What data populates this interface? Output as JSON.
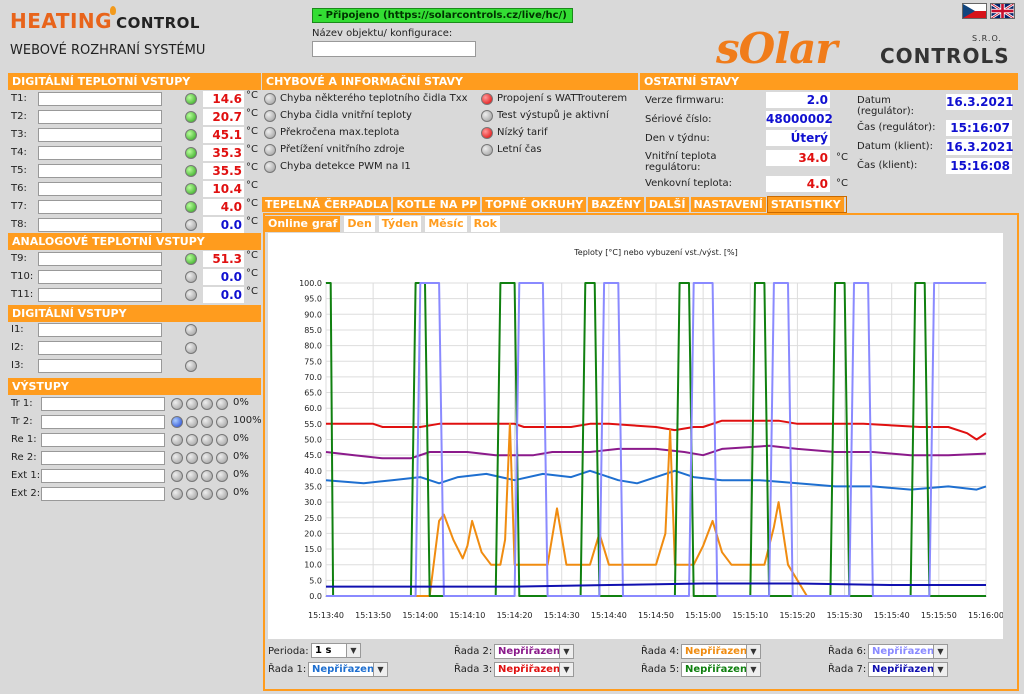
{
  "header": {
    "logo_word1": "HEATING",
    "logo_word2": "CONTROL",
    "subtitle": "WEBOVÉ ROZHRANÍ SYSTÉMU",
    "connection": "- Připojeno (https://solarcontrols.cz/live/hc/)",
    "object_label": "Název objektu/ konfigurace:",
    "object_value": "",
    "brand_word1": "sOlar",
    "brand_word2": "CONTROLS",
    "brand_suffix": "S.R.O."
  },
  "digital_temp": {
    "title": "DIGITÁLNÍ TEPLOTNÍ VSTUPY",
    "unit": "°C",
    "rows": [
      {
        "label": "T1:",
        "value": "14.6",
        "color": "red",
        "led": "green"
      },
      {
        "label": "T2:",
        "value": "20.7",
        "color": "red",
        "led": "green"
      },
      {
        "label": "T3:",
        "value": "45.1",
        "color": "red",
        "led": "green"
      },
      {
        "label": "T4:",
        "value": "35.3",
        "color": "red",
        "led": "green"
      },
      {
        "label": "T5:",
        "value": "35.5",
        "color": "red",
        "led": "green"
      },
      {
        "label": "T6:",
        "value": "10.4",
        "color": "red",
        "led": "green"
      },
      {
        "label": "T7:",
        "value": "4.0",
        "color": "red",
        "led": "green"
      },
      {
        "label": "T8:",
        "value": "0.0",
        "color": "blue",
        "led": "gray"
      }
    ]
  },
  "analog_temp": {
    "title": "ANALOGOVÉ TEPLOTNÍ VSTUPY",
    "unit": "°C",
    "rows": [
      {
        "label": "T9:",
        "value": "51.3",
        "color": "red",
        "led": "green"
      },
      {
        "label": "T10:",
        "value": "0.0",
        "color": "blue",
        "led": "gray"
      },
      {
        "label": "T11:",
        "value": "0.0",
        "color": "blue",
        "led": "gray"
      }
    ]
  },
  "digital_inputs": {
    "title": "DIGITÁLNÍ VSTUPY",
    "rows": [
      {
        "label": "I1:"
      },
      {
        "label": "I2:"
      },
      {
        "label": "I3:"
      }
    ]
  },
  "outputs": {
    "title": "VÝSTUPY",
    "rows": [
      {
        "label": "Tr 1:",
        "pct": "0%",
        "first": "gray"
      },
      {
        "label": "Tr 2:",
        "pct": "100%",
        "first": "blue"
      },
      {
        "label": "Re 1:",
        "pct": "0%",
        "first": "gray"
      },
      {
        "label": "Re 2:",
        "pct": "0%",
        "first": "gray"
      },
      {
        "label": "Ext 1:",
        "pct": "0%",
        "first": "gray"
      },
      {
        "label": "Ext 2:",
        "pct": "0%",
        "first": "gray"
      }
    ]
  },
  "errors": {
    "title": "CHYBOVÉ A INFORMAČNÍ STAVY",
    "left": [
      {
        "label": "Chyba některého teplotního čidla Txx",
        "led": "gray"
      },
      {
        "label": "Chyba čidla vnitřní teploty",
        "led": "gray"
      },
      {
        "label": "Překročena max.teplota",
        "led": "gray"
      },
      {
        "label": "Přetížení vnitřního zdroje",
        "led": "gray"
      },
      {
        "label": "Chyba detekce PWM na I1",
        "led": "gray"
      }
    ],
    "right": [
      {
        "label": "Propojení s WATTrouterem",
        "led": "red"
      },
      {
        "label": "Test výstupů je aktivní",
        "led": "gray"
      },
      {
        "label": "Nízký tarif",
        "led": "red"
      },
      {
        "label": "Letní čas",
        "led": "gray"
      }
    ]
  },
  "other": {
    "title": "OSTATNÍ STAVY",
    "firmware_label": "Verze firmwaru:",
    "firmware": "2.0",
    "serial_label": "Sériové číslo:",
    "serial": "48000002",
    "day_label": "Den v týdnu:",
    "day": "Úterý",
    "inner_label": "Vnitřní teplota regulátoru:",
    "inner": "34.0",
    "outer_label": "Venkovní teplota:",
    "outer": "4.0",
    "unit": "°C",
    "date_reg_label": "Datum (regulátor):",
    "date_reg": "16.3.2021",
    "time_reg_label": "Čas (regulátor):",
    "time_reg": "15:16:07",
    "date_cli_label": "Datum (klient):",
    "date_cli": "16.3.2021",
    "time_cli_label": "Čas (klient):",
    "time_cli": "15:16:08"
  },
  "tabs": [
    "TEPELNÁ ČERPADLA",
    "KOTLE NA PP",
    "TOPNÉ OKRUHY",
    "BAZÉNY",
    "DALŠÍ",
    "NASTAVENÍ",
    "STATISTIKY"
  ],
  "subtabs": [
    "Online graf",
    "Den",
    "Týden",
    "Měsíc",
    "Rok"
  ],
  "controls": {
    "period_label": "Perioda:",
    "period": "1 s",
    "series_sel": [
      {
        "label": "Řada 1:",
        "value": "Nepřiřazeno",
        "color": "#1e6fd0"
      },
      {
        "label": "Řada 2:",
        "value": "Nepřiřazeno",
        "color": "#8b1a8b"
      },
      {
        "label": "Řada 3:",
        "value": "Nepřiřazeno",
        "color": "#e01010"
      },
      {
        "label": "Řada 4:",
        "value": "Nepřiřazeno",
        "color": "#f08c10"
      },
      {
        "label": "Řada 5:",
        "value": "Nepřiřazeno",
        "color": "#108010"
      },
      {
        "label": "Řada 6:",
        "value": "Nepřiřazeno",
        "color": "#8a8aff"
      },
      {
        "label": "Řada 7:",
        "value": "Nepřiřazeno",
        "color": "#1010b0"
      }
    ]
  },
  "chart_data": {
    "type": "line",
    "title": "Teploty [°C] nebo vybuzení vst./výst. [%]",
    "ylim": [
      0,
      100
    ],
    "yticks": [
      "0.0",
      "5.0",
      "10.0",
      "15.0",
      "20.0",
      "25.0",
      "30.0",
      "35.0",
      "40.0",
      "45.0",
      "50.0",
      "55.0",
      "60.0",
      "65.0",
      "70.0",
      "75.0",
      "80.0",
      "85.0",
      "90.0",
      "95.0",
      "100.0"
    ],
    "xticks": [
      "15:13:40",
      "15:13:50",
      "15:14:00",
      "15:14:10",
      "15:14:20",
      "15:14:30",
      "15:14:40",
      "15:14:50",
      "15:15:00",
      "15:15:10",
      "15:15:20",
      "15:15:30",
      "15:15:40",
      "15:15:50",
      "15:16:00"
    ],
    "x_range_s": [
      0,
      140
    ],
    "series": [
      {
        "color": "#e01010",
        "values": [
          [
            0,
            55
          ],
          [
            10,
            55
          ],
          [
            12,
            54
          ],
          [
            20,
            54
          ],
          [
            24,
            55
          ],
          [
            40,
            55
          ],
          [
            42,
            54
          ],
          [
            52,
            54
          ],
          [
            56,
            55
          ],
          [
            60,
            55
          ],
          [
            70,
            54
          ],
          [
            74,
            53
          ],
          [
            78,
            54
          ],
          [
            80,
            54
          ],
          [
            84,
            56
          ],
          [
            96,
            56
          ],
          [
            100,
            55
          ],
          [
            114,
            55
          ],
          [
            126,
            54
          ],
          [
            132,
            54
          ],
          [
            136,
            52
          ],
          [
            138,
            50
          ],
          [
            140,
            52
          ]
        ]
      },
      {
        "color": "#8b1a8b",
        "values": [
          [
            0,
            46
          ],
          [
            6,
            45
          ],
          [
            12,
            44
          ],
          [
            18,
            44
          ],
          [
            22,
            46
          ],
          [
            30,
            46
          ],
          [
            36,
            45
          ],
          [
            44,
            45
          ],
          [
            48,
            46
          ],
          [
            56,
            46
          ],
          [
            62,
            47
          ],
          [
            70,
            47
          ],
          [
            76,
            46
          ],
          [
            80,
            45
          ],
          [
            84,
            47
          ],
          [
            94,
            48
          ],
          [
            100,
            47
          ],
          [
            108,
            46
          ],
          [
            116,
            46
          ],
          [
            124,
            45
          ],
          [
            132,
            45
          ],
          [
            140,
            45.5
          ]
        ]
      },
      {
        "color": "#1e6fd0",
        "values": [
          [
            0,
            37
          ],
          [
            8,
            36
          ],
          [
            14,
            37
          ],
          [
            20,
            38
          ],
          [
            24,
            36
          ],
          [
            28,
            38
          ],
          [
            34,
            39
          ],
          [
            40,
            37
          ],
          [
            46,
            39
          ],
          [
            52,
            38
          ],
          [
            56,
            40
          ],
          [
            62,
            37
          ],
          [
            66,
            36
          ],
          [
            72,
            39
          ],
          [
            74,
            40
          ],
          [
            78,
            38
          ],
          [
            84,
            37
          ],
          [
            92,
            37
          ],
          [
            100,
            36
          ],
          [
            108,
            35
          ],
          [
            116,
            35
          ],
          [
            124,
            34
          ],
          [
            132,
            35
          ],
          [
            138,
            34
          ],
          [
            140,
            35
          ]
        ]
      },
      {
        "color": "#f08c10",
        "values": [
          [
            0,
            0
          ],
          [
            22,
            0
          ],
          [
            24,
            24
          ],
          [
            25,
            26
          ],
          [
            27,
            18
          ],
          [
            29,
            12
          ],
          [
            30,
            16
          ],
          [
            31,
            24
          ],
          [
            33,
            14
          ],
          [
            35,
            10
          ],
          [
            37,
            10
          ],
          [
            38,
            18
          ],
          [
            39,
            55
          ],
          [
            40,
            10
          ],
          [
            47,
            10
          ],
          [
            49,
            28
          ],
          [
            51,
            10
          ],
          [
            56,
            10
          ],
          [
            58,
            20
          ],
          [
            60,
            10
          ],
          [
            70,
            10
          ],
          [
            72,
            20
          ],
          [
            73,
            53
          ],
          [
            74,
            10
          ],
          [
            78,
            10
          ],
          [
            80,
            16
          ],
          [
            82,
            24
          ],
          [
            84,
            14
          ],
          [
            86,
            10
          ],
          [
            93,
            10
          ],
          [
            95,
            22
          ],
          [
            96,
            30
          ],
          [
            98,
            10
          ],
          [
            102,
            0
          ],
          [
            140,
            0
          ]
        ]
      },
      {
        "color": "#108010",
        "values": [
          [
            0,
            100
          ],
          [
            1,
            100
          ],
          [
            1.5,
            0
          ],
          [
            18,
            0
          ],
          [
            19,
            100
          ],
          [
            21,
            100
          ],
          [
            22,
            0
          ],
          [
            36,
            0
          ],
          [
            37,
            100
          ],
          [
            40,
            100
          ],
          [
            41,
            0
          ],
          [
            54,
            0
          ],
          [
            55,
            100
          ],
          [
            57,
            100
          ],
          [
            58,
            0
          ],
          [
            74,
            0
          ],
          [
            75,
            100
          ],
          [
            77,
            100
          ],
          [
            78,
            0
          ],
          [
            90,
            0
          ],
          [
            91,
            100
          ],
          [
            93,
            100
          ],
          [
            94,
            0
          ],
          [
            107,
            0
          ],
          [
            108,
            100
          ],
          [
            110,
            100
          ],
          [
            111,
            0
          ],
          [
            124,
            0
          ],
          [
            125,
            100
          ],
          [
            127,
            100
          ],
          [
            128,
            0
          ],
          [
            140,
            0
          ]
        ]
      },
      {
        "color": "#8a8aff",
        "values": [
          [
            0,
            0
          ],
          [
            19,
            0
          ],
          [
            20,
            100
          ],
          [
            24,
            100
          ],
          [
            25,
            0
          ],
          [
            40,
            0
          ],
          [
            41,
            100
          ],
          [
            46,
            100
          ],
          [
            47,
            0
          ],
          [
            58,
            0
          ],
          [
            59,
            100
          ],
          [
            62,
            100
          ],
          [
            63,
            0
          ],
          [
            77,
            0
          ],
          [
            78,
            100
          ],
          [
            82,
            100
          ],
          [
            83,
            0
          ],
          [
            94,
            0
          ],
          [
            95,
            100
          ],
          [
            98,
            100
          ],
          [
            99,
            0
          ],
          [
            111,
            0
          ],
          [
            112,
            100
          ],
          [
            115,
            100
          ],
          [
            116,
            0
          ],
          [
            128,
            0
          ],
          [
            129,
            100
          ],
          [
            140,
            100
          ]
        ]
      },
      {
        "color": "#1010b0",
        "values": [
          [
            0,
            3
          ],
          [
            40,
            3
          ],
          [
            60,
            3.5
          ],
          [
            80,
            4
          ],
          [
            100,
            4
          ],
          [
            120,
            3.5
          ],
          [
            140,
            3.5
          ]
        ]
      }
    ]
  }
}
